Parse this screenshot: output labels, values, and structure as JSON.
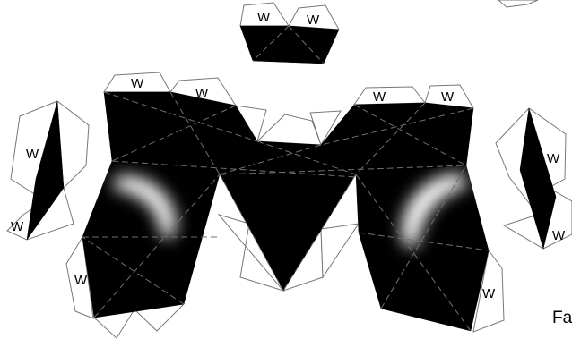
{
  "labels": {
    "tab_letter": "W",
    "caption_fragment": "Fa"
  },
  "colors": {
    "face": "#000000",
    "outline": "#777777",
    "fold_line": "#6f6f6f",
    "highlight": "#ffffff"
  }
}
